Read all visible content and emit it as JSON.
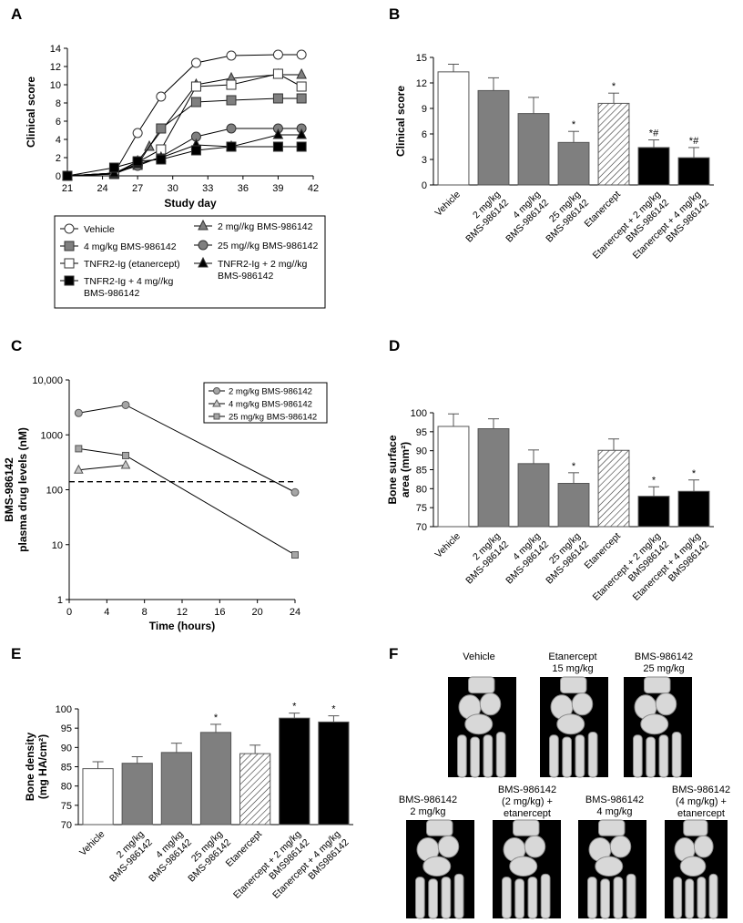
{
  "panels": {
    "a": "A",
    "b": "B",
    "c": "C",
    "d": "D",
    "e": "E",
    "f": "F"
  },
  "chart_data": [
    {
      "panel": "A",
      "type": "line",
      "xlabel": "Study day",
      "ylabel": "Clinical score",
      "xlim": [
        21,
        42
      ],
      "ylim": [
        0,
        14
      ],
      "xticks": [
        21,
        24,
        27,
        30,
        33,
        36,
        39,
        42
      ],
      "yticks": [
        0,
        2,
        4,
        6,
        8,
        10,
        12,
        14
      ],
      "grid": false,
      "legend_position": "below",
      "series": [
        {
          "name": "Vehicle",
          "marker": "circle-open",
          "x": [
            21,
            25,
            27,
            29,
            32,
            35,
            39,
            41
          ],
          "values": [
            0,
            0.3,
            4.7,
            8.7,
            12.4,
            13.2,
            13.3,
            13.3
          ]
        },
        {
          "name": "2 mg//kg BMS-986142",
          "marker": "triangle-gray",
          "x": [
            21,
            25,
            27,
            28,
            32,
            35,
            39,
            41
          ],
          "values": [
            0,
            0.2,
            1.6,
            3.2,
            10.0,
            10.7,
            11.1,
            11.1
          ]
        },
        {
          "name": "4 mg/kg BMS-986142",
          "marker": "square-gray",
          "x": [
            21,
            25,
            27,
            29,
            32,
            35,
            39,
            41
          ],
          "values": [
            0,
            0.2,
            1.2,
            5.2,
            8.1,
            8.3,
            8.5,
            8.5
          ]
        },
        {
          "name": "25 mg//kg BMS-986142",
          "marker": "circle-gray",
          "x": [
            21,
            25,
            27,
            29,
            32,
            35,
            39,
            41
          ],
          "values": [
            0,
            0.3,
            1.1,
            2.1,
            4.3,
            5.2,
            5.2,
            5.2
          ]
        },
        {
          "name": "TNFR2-Ig (etanercept)",
          "marker": "square-open",
          "x": [
            21,
            25,
            27,
            29,
            32,
            35,
            39,
            41
          ],
          "values": [
            0,
            0.3,
            1.5,
            2.9,
            9.8,
            10.0,
            11.2,
            9.8
          ]
        },
        {
          "name": "TNFR2-Ig + 2 mg//kg BMS-986142",
          "marker": "triangle-black",
          "x": [
            21,
            25,
            27,
            29,
            32,
            35,
            39,
            41
          ],
          "values": [
            0,
            0.3,
            1.3,
            2.0,
            3.4,
            3.2,
            4.5,
            4.5
          ]
        },
        {
          "name": "TNFR2-Ig + 4 mg//kg BMS-986142",
          "marker": "square-black",
          "x": [
            21,
            25,
            27,
            29,
            32,
            35,
            39,
            41
          ],
          "values": [
            0,
            0.9,
            1.6,
            1.8,
            2.8,
            3.2,
            3.2,
            3.2
          ]
        }
      ]
    },
    {
      "panel": "B",
      "type": "bar",
      "ylabel": "Clinical score",
      "ylim": [
        0,
        15
      ],
      "yticks": [
        0,
        3,
        6,
        9,
        12,
        15
      ],
      "categories": [
        "Vehicle",
        "2 mg/kg BMS-986142",
        "4 mg/kg BMS-986142",
        "25 mg/kg BMS-986142",
        "Etanercept",
        "Etanercept + 2 mg/kg BMS-986142",
        "Etanercept + 4 mg/kg BMS-986142"
      ],
      "category_lines": [
        [
          "Vehicle"
        ],
        [
          "2 mg/kg",
          "BMS-986142"
        ],
        [
          "4 mg/kg",
          "BMS-986142"
        ],
        [
          "25 mg/kg",
          "BMS-986142"
        ],
        [
          "Etanercept"
        ],
        [
          "Etanercept + 2 mg/kg",
          "BMS-986142"
        ],
        [
          "Etanercept + 4 mg/kg",
          "BMS-986142"
        ]
      ],
      "values": [
        13.3,
        11.1,
        8.4,
        5.0,
        9.6,
        4.4,
        3.2
      ],
      "errors": [
        0.9,
        1.5,
        1.9,
        1.3,
        1.2,
        0.9,
        1.2
      ],
      "fills": [
        "white",
        "gray",
        "gray",
        "gray",
        "hatch",
        "black",
        "black"
      ],
      "annotations": [
        "",
        "",
        "",
        "*",
        "*",
        "*#",
        "*#"
      ]
    },
    {
      "panel": "C",
      "type": "line",
      "xlabel": "Time (hours)",
      "ylabel_lines": [
        "BMS-986142",
        "plasma drug levels (nM)"
      ],
      "yscale": "log",
      "xlim": [
        0,
        24
      ],
      "ylim": [
        1,
        10000
      ],
      "xticks": [
        0,
        4,
        8,
        12,
        16,
        20,
        24
      ],
      "yticks": [
        1,
        10,
        100,
        1000,
        10000
      ],
      "ytick_labels": [
        "1",
        "10",
        "100",
        "1000",
        "10,000"
      ],
      "reference_line": 140,
      "legend_position": "top-right",
      "series": [
        {
          "name": "2 mg/kg BMS-986142",
          "marker": "circle",
          "x": [
            1,
            6,
            24
          ],
          "values": [
            2500,
            3500,
            90
          ]
        },
        {
          "name": "4 mg/kg BMS-986142",
          "marker": "triangle",
          "x": [
            1,
            6
          ],
          "values": [
            230,
            280
          ]
        },
        {
          "name": "25 mg/kg BMS-986142",
          "marker": "square",
          "x": [
            1,
            6,
            24
          ],
          "values": [
            560,
            420,
            6.5
          ]
        }
      ]
    },
    {
      "panel": "D",
      "type": "bar",
      "ylabel_lines": [
        "Bone surface",
        "area (mm²)"
      ],
      "ylim": [
        70,
        100
      ],
      "yticks": [
        70,
        75,
        80,
        85,
        90,
        95,
        100
      ],
      "categories": [
        "Vehicle",
        "2 mg/kg BMS-986142",
        "4 mg/kg BMS-986142",
        "25 mg/kg BMS-986142",
        "Etanercept",
        "Etanercept + 2 mg/kg BMS986142",
        "Etanercept + 4 mg/kg BMS986142"
      ],
      "category_lines": [
        [
          "Vehicle"
        ],
        [
          "2 mg/kg",
          "BMS-986142"
        ],
        [
          "4 mg/kg",
          "BMS-986142"
        ],
        [
          "25 mg/kg",
          "BMS-986142"
        ],
        [
          "Etanercept"
        ],
        [
          "Etanercept + 2 mg/kg",
          "BMS986142"
        ],
        [
          "Etanercept + 4 mg/kg",
          "BMS986142"
        ]
      ],
      "values": [
        96.4,
        95.8,
        86.6,
        81.4,
        90.1,
        78.0,
        79.3
      ],
      "errors": [
        3.3,
        2.6,
        3.6,
        2.8,
        3.0,
        2.5,
        3.0
      ],
      "fills": [
        "white",
        "gray",
        "gray",
        "gray",
        "hatch",
        "black",
        "black"
      ],
      "annotations": [
        "",
        "",
        "",
        "*",
        "",
        "*",
        "*"
      ]
    },
    {
      "panel": "E",
      "type": "bar",
      "ylabel_lines": [
        "Bone density",
        "(mg HA/cm²)"
      ],
      "ylim": [
        70,
        100
      ],
      "yticks": [
        70,
        75,
        80,
        85,
        90,
        95,
        100
      ],
      "categories": [
        "Vehicle",
        "2 mg/kg BMS-986142",
        "4 mg/kg BMS-986142",
        "25 mg/kg BMS-986142",
        "Etanercept",
        "Etanercept + 2 mg/kg BMS986142",
        "Etanercept + 4 mg/kg BMS986142"
      ],
      "category_lines": [
        [
          "Vehicle"
        ],
        [
          "2 mg/kg",
          "BMS-986142"
        ],
        [
          "4 mg/kg",
          "BMS-986142"
        ],
        [
          "25 mg/kg",
          "BMS-986142"
        ],
        [
          "Etanercept"
        ],
        [
          "Etanercept + 2 mg/kg",
          "BMS986142"
        ],
        [
          "Etanercept + 4 mg/kg",
          "BMS986142"
        ]
      ],
      "values": [
        84.5,
        85.9,
        88.7,
        93.9,
        88.4,
        97.6,
        96.6
      ],
      "errors": [
        1.8,
        1.7,
        2.4,
        2.1,
        2.2,
        1.3,
        1.6
      ],
      "fills": [
        "white",
        "gray",
        "gray",
        "gray",
        "hatch",
        "black",
        "black"
      ],
      "annotations": [
        "",
        "",
        "",
        "*",
        "",
        "*",
        "*"
      ]
    }
  ],
  "panel_f": {
    "images": [
      {
        "caption": "Vehicle"
      },
      {
        "caption": "Etanercept\n15 mg/kg"
      },
      {
        "caption": "BMS-986142\n25 mg/kg"
      },
      {
        "caption": "BMS-986142\n2 mg/kg"
      },
      {
        "caption": "BMS-986142\n(2 mg/kg) +\netanercept"
      },
      {
        "caption": "BMS-986142\n4 mg/kg"
      },
      {
        "caption": "BMS-986142\n(4 mg/kg) +\netanercept"
      }
    ]
  }
}
